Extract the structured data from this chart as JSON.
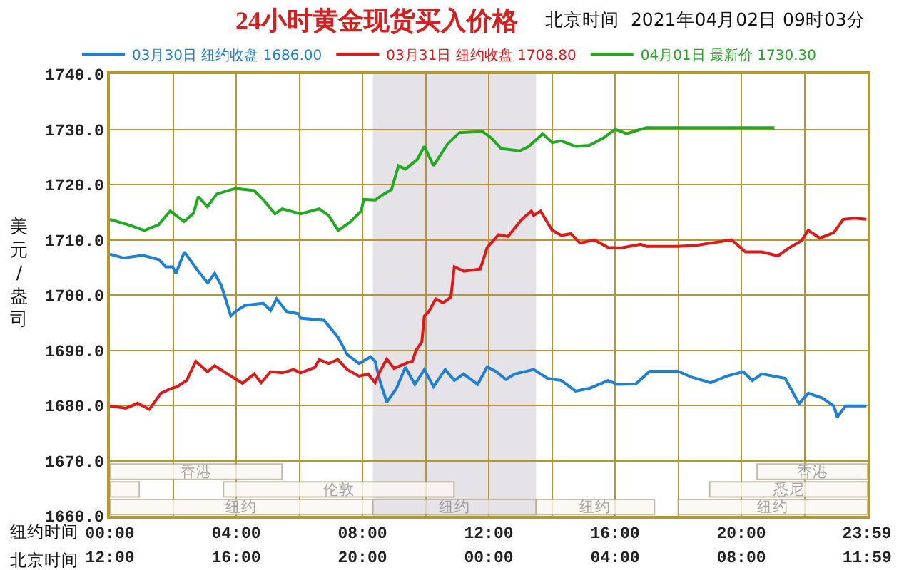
{
  "chart_data": [
    {
      "type": "line",
      "title": "24小时黄金现货买入价格",
      "annotations": [
        "北京时间  2021年04月02日 09时03分"
      ],
      "xlabel": "纽约时间",
      "x2label": "北京时间",
      "ylabel": "美元/盎司",
      "xlim": [
        0,
        24
      ],
      "xticks": [
        {
          "value": 0,
          "label": "00:00"
        },
        {
          "value": 2,
          "label": null
        },
        {
          "value": 4,
          "label": "04:00"
        },
        {
          "value": 6,
          "label": null
        },
        {
          "value": 8,
          "label": "08:00"
        },
        {
          "value": 10,
          "label": null
        },
        {
          "value": 12,
          "label": "12:00"
        },
        {
          "value": 14,
          "label": null
        },
        {
          "value": 16,
          "label": "16:00"
        },
        {
          "value": 18,
          "label": null
        },
        {
          "value": 20,
          "label": "20:00"
        },
        {
          "value": 22,
          "label": null
        },
        {
          "value": 23.98,
          "label": "23:59"
        }
      ],
      "x2lim": [
        "2021-04-01T12:00",
        "2021-04-02T12:00"
      ],
      "x2ticks": [
        {
          "value": "2021-04-01T12:00",
          "label": "12:00"
        },
        {
          "value": "2021-04-01T16:00",
          "label": "16:00"
        },
        {
          "value": "2021-04-01T20:00",
          "label": "20:00"
        },
        {
          "value": "2021-04-02T00:00",
          "label": "00:00"
        },
        {
          "value": "2021-04-02T04:00",
          "label": "04:00"
        },
        {
          "value": "2021-04-02T08:00",
          "label": "08:00"
        },
        {
          "value": "2021-04-02T11:59",
          "label": "11:59"
        }
      ],
      "ylim": [
        1660,
        1740
      ],
      "yticks": [
        {
          "value": 1660,
          "label": "1660.0"
        },
        {
          "value": 1670,
          "label": "1670.0"
        },
        {
          "value": 1680,
          "label": "1680.0"
        },
        {
          "value": 1690,
          "label": "1690.0"
        },
        {
          "value": 1700,
          "label": "1700.0"
        },
        {
          "value": 1710,
          "label": "1710.0"
        },
        {
          "value": 1720,
          "label": "1720.0"
        },
        {
          "value": 1730,
          "label": "1730.0"
        },
        {
          "value": 1740,
          "label": "1740.0"
        }
      ],
      "grid": true,
      "legend": "top",
      "bands": [
        {
          "axis": "x",
          "from": 8.33,
          "to": 13.5,
          "color": "#e6e3e8"
        }
      ],
      "series": [
        {
          "name": "03月30日 纽约收盘 1686.00",
          "color": "#1e7fd6",
          "x": [
            0,
            0.44,
            1.04,
            1.55,
            1.77,
            1.99,
            2.09,
            2.36,
            2.8,
            3.1,
            3.32,
            3.54,
            3.83,
            3.97,
            4.27,
            4.86,
            5.09,
            5.28,
            5.6,
            5.97,
            6.04,
            6.79,
            7.23,
            7.52,
            7.89,
            8.26,
            8.4,
            8.55,
            8.77,
            9.07,
            9.36,
            9.66,
            9.96,
            10.25,
            10.62,
            10.91,
            11.2,
            11.65,
            11.95,
            12.24,
            12.54,
            12.83,
            13.42,
            13.86,
            14.3,
            14.75,
            15.19,
            15.78,
            16.08,
            16.66,
            17.1,
            17.99,
            18.43,
            19.03,
            19.54,
            20.06,
            20.35,
            20.65,
            21.39,
            21.83,
            22.12,
            22.57,
            22.93,
            23.04,
            23.3,
            23.96
          ],
          "values": [
            1707.4,
            1706.7,
            1707.2,
            1706.4,
            1705.1,
            1705.1,
            1703.9,
            1707.8,
            1704.3,
            1702.2,
            1703.9,
            1701.6,
            1696.2,
            1697.0,
            1698.1,
            1698.5,
            1697.2,
            1699.3,
            1697.0,
            1696.6,
            1695.8,
            1695.4,
            1692.3,
            1689.2,
            1687.6,
            1688.8,
            1688.0,
            1684.5,
            1680.6,
            1683.0,
            1686.9,
            1683.8,
            1686.5,
            1683.4,
            1686.5,
            1684.5,
            1685.7,
            1683.8,
            1687.0,
            1686.1,
            1684.7,
            1685.7,
            1686.5,
            1684.9,
            1684.5,
            1682.6,
            1683.1,
            1684.5,
            1683.8,
            1683.9,
            1686.2,
            1686.2,
            1685.1,
            1684.1,
            1685.3,
            1686.1,
            1684.5,
            1685.7,
            1684.9,
            1680.3,
            1682.2,
            1681.3,
            1679.9,
            1677.9,
            1679.9,
            1679.9
          ]
        },
        {
          "name": "03月31日 纽约收盘 1708.80",
          "color": "#e01818",
          "x": [
            0,
            0.51,
            0.88,
            1.25,
            1.62,
            1.91,
            2.13,
            2.43,
            2.72,
            3.09,
            3.32,
            3.83,
            4.2,
            4.57,
            4.79,
            5.09,
            5.46,
            5.82,
            6.04,
            6.49,
            6.63,
            6.93,
            7.22,
            7.52,
            7.89,
            8.18,
            8.4,
            8.55,
            8.77,
            9.0,
            9.44,
            9.58,
            9.7,
            9.88,
            9.96,
            10.1,
            10.32,
            10.55,
            10.8,
            10.91,
            11.21,
            11.73,
            11.95,
            12.31,
            12.61,
            13.05,
            13.35,
            13.42,
            13.64,
            14.01,
            14.3,
            14.6,
            14.89,
            15.34,
            15.78,
            16.15,
            16.81,
            17.0,
            17.99,
            18.58,
            19.03,
            19.69,
            20.13,
            20.65,
            21.16,
            21.53,
            21.9,
            22.12,
            22.49,
            22.93,
            23.23,
            23.6,
            23.96
          ],
          "values": [
            1679.9,
            1679.5,
            1680.4,
            1679.3,
            1682.2,
            1683.0,
            1683.4,
            1684.5,
            1688.0,
            1686.1,
            1687.2,
            1685.3,
            1684.0,
            1685.7,
            1684.1,
            1686.1,
            1685.9,
            1686.5,
            1685.9,
            1686.9,
            1688.3,
            1687.6,
            1688.3,
            1686.5,
            1685.3,
            1685.7,
            1684.1,
            1686.1,
            1688.4,
            1686.7,
            1687.8,
            1688.0,
            1690.0,
            1691.5,
            1696.2,
            1697.0,
            1699.3,
            1698.6,
            1699.6,
            1705.1,
            1704.3,
            1704.7,
            1708.6,
            1710.9,
            1710.6,
            1713.7,
            1715.2,
            1714.4,
            1715.2,
            1711.7,
            1710.8,
            1711.1,
            1709.4,
            1710.0,
            1708.6,
            1708.5,
            1709.2,
            1708.8,
            1708.8,
            1709.0,
            1709.4,
            1710.0,
            1707.8,
            1707.8,
            1707.1,
            1708.6,
            1709.8,
            1711.7,
            1710.3,
            1711.3,
            1713.7,
            1713.9,
            1713.7
          ]
        },
        {
          "name": "04月01日 最新价 1730.30",
          "color": "#1faa1f",
          "x": [
            0,
            0.59,
            1.09,
            1.54,
            1.91,
            2.35,
            2.65,
            2.8,
            3.09,
            3.39,
            3.98,
            4.57,
            4.86,
            5.23,
            5.46,
            6.04,
            6.63,
            6.93,
            7.23,
            7.59,
            7.96,
            8.04,
            8.41,
            8.63,
            8.92,
            9.14,
            9.36,
            9.73,
            9.96,
            10.25,
            10.69,
            11.07,
            11.8,
            12.09,
            12.39,
            12.98,
            13.27,
            13.71,
            14.01,
            14.3,
            14.75,
            15.19,
            15.63,
            16.0,
            16.37,
            16.81,
            17.0,
            21.05
          ],
          "values": [
            1713.7,
            1712.7,
            1711.7,
            1712.7,
            1715.2,
            1713.3,
            1714.8,
            1717.8,
            1716.0,
            1718.3,
            1719.3,
            1718.9,
            1717.2,
            1714.7,
            1715.6,
            1714.7,
            1715.6,
            1714.4,
            1711.7,
            1713.1,
            1715.2,
            1717.3,
            1717.2,
            1718.1,
            1719.1,
            1723.4,
            1722.8,
            1724.5,
            1726.9,
            1723.4,
            1727.3,
            1729.4,
            1729.6,
            1728.4,
            1726.5,
            1726.1,
            1726.9,
            1729.2,
            1727.6,
            1727.9,
            1726.9,
            1727.1,
            1728.4,
            1730.0,
            1729.2,
            1730.0,
            1730.3,
            1730.3
          ]
        }
      ]
    },
    {
      "type": "bar",
      "orientation": "horizontal",
      "categories": [
        null
      ],
      "xlim": [
        0,
        24
      ],
      "tick_labels": false,
      "series": [
        {
          "color": "#faf8f3",
          "base": [
            0
          ],
          "values": [
            5.45
          ],
          "value_labels": [
            "香港"
          ]
        },
        {
          "color": "#faf8f3",
          "base": [
            20.5
          ],
          "values": [
            3.5
          ],
          "value_labels": [
            "香港"
          ]
        }
      ]
    },
    {
      "type": "bar",
      "orientation": "horizontal",
      "categories": [
        null
      ],
      "xlim": [
        0,
        24
      ],
      "tick_labels": false,
      "series": [
        {
          "color": "#faf8f3",
          "base": [
            0
          ],
          "values": [
            0.93
          ]
        },
        {
          "color": "#faf8f3",
          "base": [
            3.6
          ],
          "values": [
            7.3
          ],
          "value_labels": [
            "伦敦"
          ]
        },
        {
          "color": "#faf8f3",
          "base": [
            19
          ],
          "values": [
            5
          ],
          "value_labels": [
            "悉尼"
          ]
        }
      ]
    },
    {
      "type": "bar",
      "orientation": "horizontal",
      "categories": [
        null
      ],
      "xlim": [
        0,
        24
      ],
      "tick_labels": false,
      "series": [
        {
          "color": "#faf8f3",
          "base": [
            0
          ],
          "values": [
            8.33
          ],
          "value_labels": [
            "纽约"
          ]
        },
        {
          "color": "#e6e3e8",
          "base": [
            8.33
          ],
          "values": [
            5.17
          ],
          "value_labels": [
            "纽约"
          ]
        },
        {
          "color": "#faf8f3",
          "base": [
            13.5
          ],
          "values": [
            3.75
          ],
          "value_labels": [
            "纽约"
          ]
        },
        {
          "color": "#faf8f3",
          "base": [
            18
          ],
          "values": [
            6
          ],
          "value_labels": [
            "纽约"
          ]
        }
      ]
    }
  ]
}
